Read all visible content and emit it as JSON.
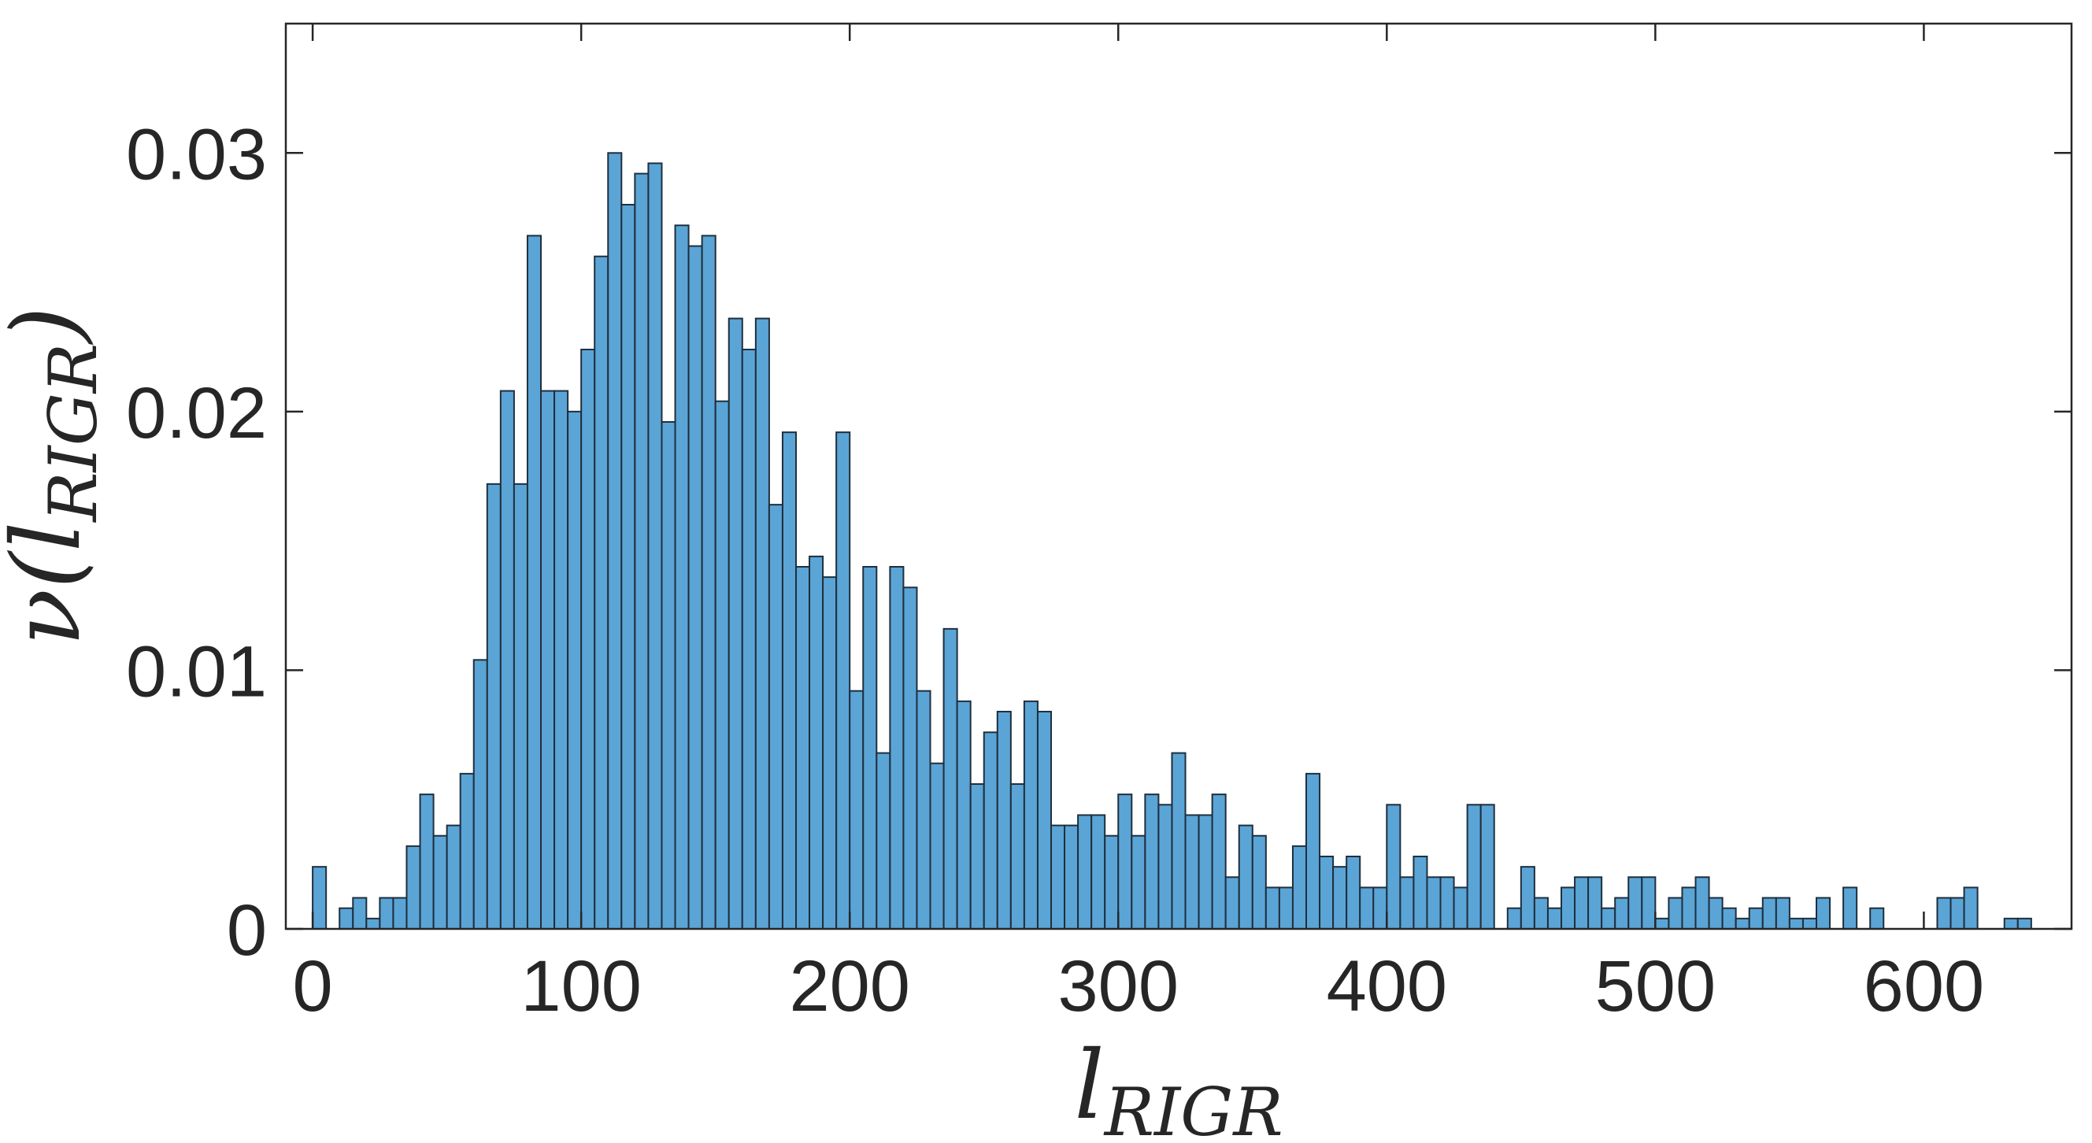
{
  "chart_data": {
    "type": "bar",
    "histogram": true,
    "xlabel_main": "l",
    "xlabel_sub": "RIGR",
    "ylabel_main": "ν(l",
    "ylabel_sub": "RIGR",
    "ylabel_close": ")",
    "xlim": [
      -10,
      655
    ],
    "ylim": [
      0,
      0.035
    ],
    "xticks": [
      0,
      100,
      200,
      300,
      400,
      500,
      600
    ],
    "yticks": [
      0,
      0.01,
      0.02,
      0.03
    ],
    "xtick_labels": [
      "0",
      "100",
      "200",
      "300",
      "400",
      "500",
      "600"
    ],
    "ytick_labels": [
      "0",
      "0.01",
      "0.02",
      "0.03"
    ],
    "bin_width": 5,
    "bin_start": 0,
    "values": [
      0.0024,
      0,
      0.0008,
      0.0012,
      0.0004,
      0.0012,
      0.0012,
      0.0032,
      0.0052,
      0.0036,
      0.004,
      0.006,
      0.0104,
      0.0172,
      0.0208,
      0.0172,
      0.0268,
      0.0208,
      0.0208,
      0.02,
      0.0224,
      0.026,
      0.03,
      0.028,
      0.0292,
      0.0296,
      0.0196,
      0.0272,
      0.0264,
      0.0268,
      0.0204,
      0.0236,
      0.0224,
      0.0236,
      0.0164,
      0.0192,
      0.014,
      0.0144,
      0.0136,
      0.0192,
      0.0092,
      0.014,
      0.0068,
      0.014,
      0.0132,
      0.0092,
      0.0064,
      0.0116,
      0.0088,
      0.0056,
      0.0076,
      0.0084,
      0.0056,
      0.0088,
      0.0084,
      0.004,
      0.004,
      0.0044,
      0.0044,
      0.0036,
      0.0052,
      0.0036,
      0.0052,
      0.0048,
      0.0068,
      0.0044,
      0.0044,
      0.0052,
      0.002,
      0.004,
      0.0036,
      0.0016,
      0.0016,
      0.0032,
      0.006,
      0.0028,
      0.0024,
      0.0028,
      0.0016,
      0.0016,
      0.0048,
      0.002,
      0.0028,
      0.002,
      0.002,
      0.0016,
      0.0048,
      0.0048,
      0,
      0.0008,
      0.0024,
      0.0012,
      0.0008,
      0.0016,
      0.002,
      0.002,
      0.0008,
      0.0012,
      0.002,
      0.002,
      0.0004,
      0.0012,
      0.0016,
      0.002,
      0.0012,
      0.0008,
      0.0004,
      0.0008,
      0.0012,
      0.0012,
      0.0004,
      0.0004,
      0.0012,
      0,
      0.0016,
      0,
      0.0008,
      0,
      0,
      0,
      0,
      0.0012,
      0.0012,
      0.0016,
      0,
      0,
      0.0004,
      0.0004
    ],
    "bar_color": "#5ba4d6",
    "edge_color": "#1f2f3d",
    "grid": false
  }
}
